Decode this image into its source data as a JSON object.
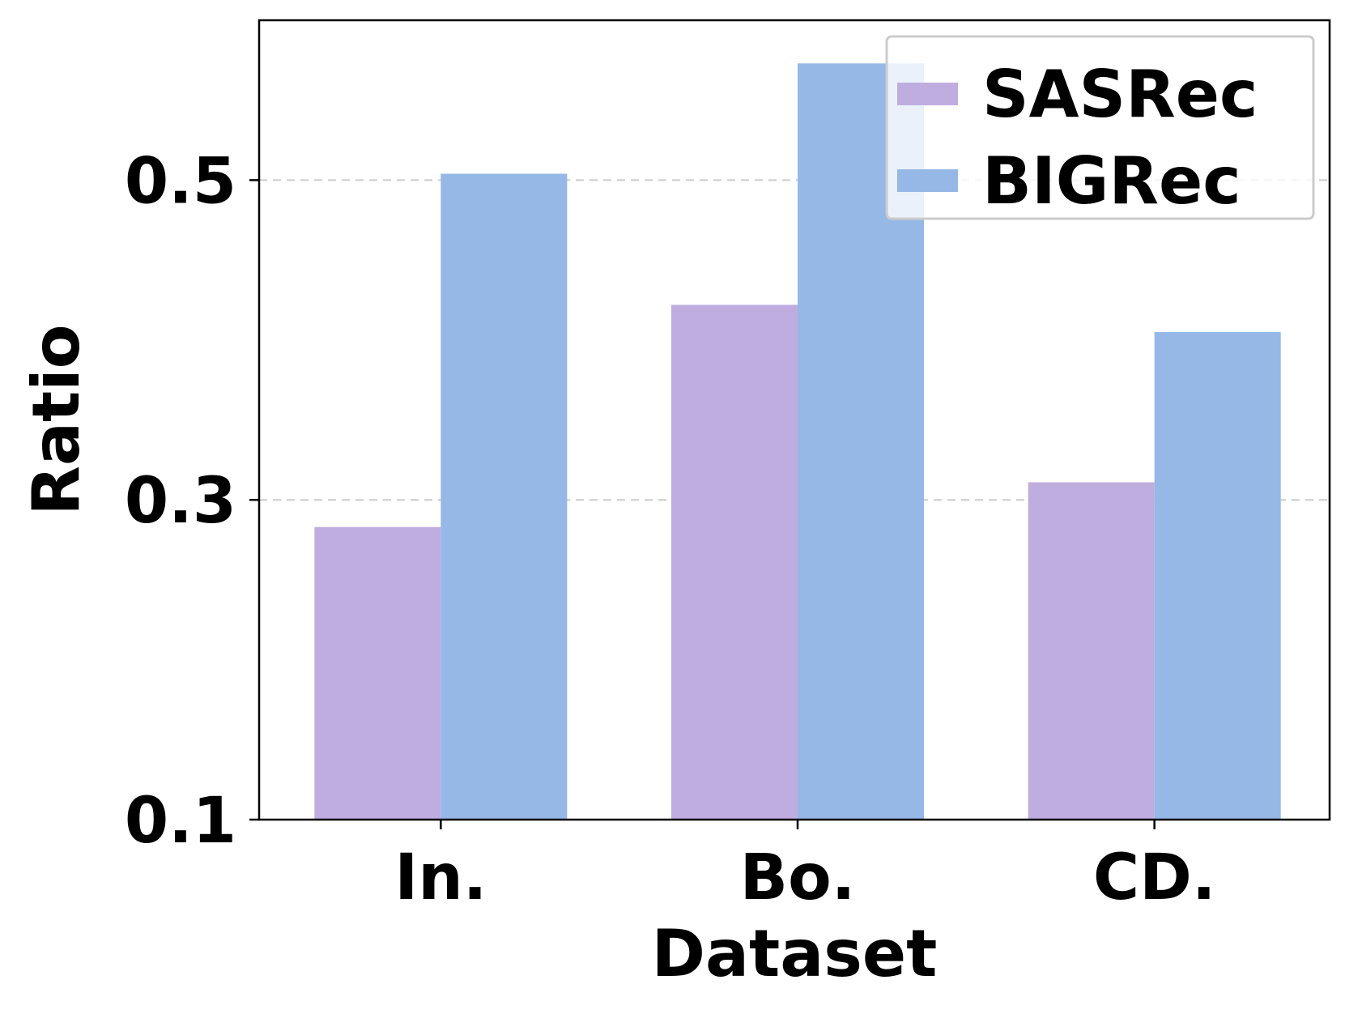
{
  "chart_data": {
    "type": "bar",
    "categories": [
      "In.",
      "Bo.",
      "CD."
    ],
    "series": [
      {
        "name": "SASRec",
        "values": [
          0.283,
          0.422,
          0.311
        ],
        "color": "#bfaddf"
      },
      {
        "name": "BIGRec",
        "values": [
          0.504,
          0.573,
          0.405
        ],
        "color": "#96b8e7"
      }
    ],
    "xlabel": "Dataset",
    "ylabel": "Ratio",
    "ylim": [
      0.1,
      0.6
    ],
    "yticks": [
      "0.1",
      "0.3",
      "0.5"
    ],
    "grid": "horizontal dashed",
    "legend_position": "top-right"
  }
}
